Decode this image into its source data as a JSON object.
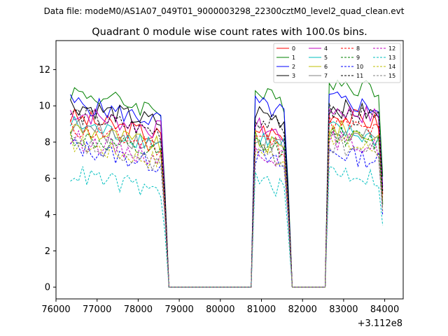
{
  "chart_data": {
    "type": "line",
    "suptitle": "Data file: modeM0/AS1A07_049T01_9000003298_22300cztM0_level2_quad_clean.evt",
    "title": "Quadrant 0 module wise count rates with 100.0s bins.",
    "xlabel": "",
    "ylabel": "",
    "x_offset_label": "+3.112e8",
    "xlim": [
      76000,
      84450
    ],
    "ylim": [
      -0.65,
      13.6
    ],
    "xticks": [
      "76000",
      "77000",
      "78000",
      "79000",
      "80000",
      "81000",
      "82000",
      "83000",
      "84000"
    ],
    "yticks": [
      "0",
      "2",
      "4",
      "6",
      "8",
      "10",
      "12"
    ],
    "legend_position": "top-right",
    "segments": [
      {
        "start": 76350,
        "end": 78650
      },
      {
        "start": 80850,
        "end": 81650
      },
      {
        "start": 82600,
        "end": 84000
      }
    ],
    "series": [
      {
        "name": "0",
        "color": "#ff0000",
        "style": "solid",
        "means": [
          8.6,
          8.5,
          9.3
        ]
      },
      {
        "name": "1",
        "color": "#008000",
        "style": "solid",
        "means": [
          10.0,
          10.4,
          11.1
        ]
      },
      {
        "name": "2",
        "color": "#0000ff",
        "style": "solid",
        "means": [
          9.4,
          9.8,
          10.1
        ]
      },
      {
        "name": "3",
        "color": "#000000",
        "style": "solid",
        "means": [
          9.3,
          9.4,
          9.7
        ]
      },
      {
        "name": "4",
        "color": "#bf00bf",
        "style": "solid",
        "means": [
          8.9,
          8.6,
          9.6
        ]
      },
      {
        "name": "5",
        "color": "#00bfbf",
        "style": "solid",
        "means": [
          8.2,
          8.0,
          8.4
        ]
      },
      {
        "name": "6",
        "color": "#bfbf00",
        "style": "solid",
        "means": [
          8.0,
          7.8,
          8.5
        ]
      },
      {
        "name": "7",
        "color": "#808080",
        "style": "solid",
        "means": [
          8.1,
          7.9,
          8.3
        ]
      },
      {
        "name": "8",
        "color": "#ff0000",
        "style": "dashed",
        "means": [
          8.0,
          8.0,
          8.8
        ]
      },
      {
        "name": "9",
        "color": "#008000",
        "style": "dashed",
        "means": [
          7.5,
          7.6,
          8.2
        ]
      },
      {
        "name": "10",
        "color": "#0000ff",
        "style": "dashed",
        "means": [
          7.0,
          6.9,
          7.2
        ]
      },
      {
        "name": "11",
        "color": "#000000",
        "style": "dashed",
        "means": [
          8.8,
          9.0,
          9.4
        ]
      },
      {
        "name": "12",
        "color": "#bf00bf",
        "style": "dashed",
        "means": [
          7.4,
          7.3,
          7.9
        ]
      },
      {
        "name": "13",
        "color": "#00bfbf",
        "style": "dashed",
        "means": [
          5.5,
          5.6,
          6.2
        ]
      },
      {
        "name": "14",
        "color": "#bfbf00",
        "style": "dashed",
        "means": [
          7.2,
          7.3,
          7.8
        ]
      },
      {
        "name": "15",
        "color": "#808080",
        "style": "dashed",
        "means": [
          7.1,
          7.2,
          7.6
        ]
      }
    ]
  }
}
